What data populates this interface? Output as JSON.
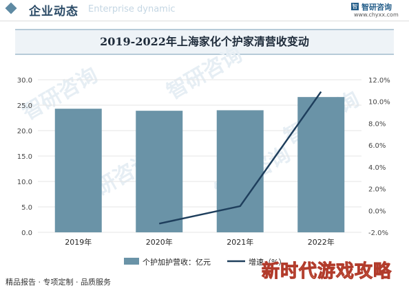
{
  "header": {
    "title": "企业动态",
    "subtitle": "Enterprise dynamic",
    "logo_glyph": "智",
    "logo_name": "智研咨询",
    "logo_url": "www.chyxx.com"
  },
  "watermark": "智研咨询",
  "footer_text": "精品报告 · 专项定制 · 品质服务",
  "badge_text": "新时代游戏攻略",
  "colors": {
    "bar": "#6a93a7",
    "line": "#1e3e5c",
    "grid": "#e4e4e4"
  },
  "chart_data": {
    "type": "bar",
    "title": "2019-2022年上海家化个护家清营收变动",
    "categories": [
      "2019年",
      "2020年",
      "2021年",
      "2022年"
    ],
    "series": [
      {
        "name": "个护加护营收：亿元",
        "type": "bar",
        "axis": "left",
        "values": [
          24.3,
          23.9,
          24.0,
          26.6
        ]
      },
      {
        "name": "增速（%）",
        "type": "line",
        "axis": "right",
        "values": [
          null,
          -1.2,
          0.4,
          10.9
        ]
      }
    ],
    "y_left": {
      "min": 0,
      "max": 30,
      "ticks": [
        "0.0",
        "5.0",
        "10.0",
        "15.0",
        "20.0",
        "25.0",
        "30.0"
      ]
    },
    "y_right": {
      "min": -2,
      "max": 12,
      "ticks": [
        "-2.0%",
        "0.0%",
        "2.0%",
        "4.0%",
        "6.0%",
        "8.0%",
        "10.0%",
        "12.0%"
      ]
    },
    "grid": true,
    "legend_position": "bottom"
  }
}
